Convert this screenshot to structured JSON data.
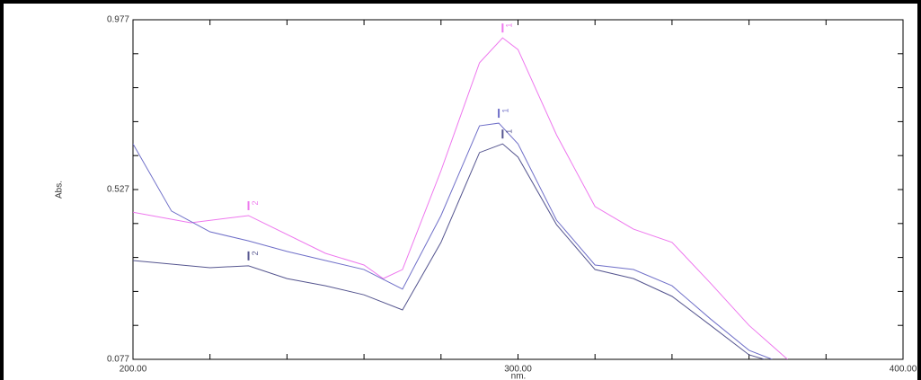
{
  "chart_data": {
    "type": "line",
    "x_label": "nm.",
    "y_label": "Abs.",
    "xlim": [
      200,
      400
    ],
    "ylim": [
      0.077,
      0.977
    ],
    "xticks": [
      {
        "value": 200,
        "label": "200.00"
      },
      {
        "value": 300,
        "label": "300.00"
      },
      {
        "value": 400,
        "label": "400.00"
      }
    ],
    "minor_xticks": [
      220,
      240,
      260,
      280,
      320,
      340,
      360,
      380
    ],
    "yticks": [
      0.077,
      0.527,
      0.977
    ],
    "minor_yticks": [
      0.167,
      0.257,
      0.347,
      0.437,
      0.617,
      0.707,
      0.797,
      0.887
    ],
    "series": [
      {
        "color": "#ee77ee",
        "x": [
          200,
          215,
          230,
          250,
          260,
          265,
          270,
          280,
          290,
          296,
          300,
          310,
          320,
          330,
          340,
          350,
          360,
          370
        ],
        "values": [
          0.467,
          0.439,
          0.458,
          0.358,
          0.327,
          0.291,
          0.315,
          0.577,
          0.863,
          0.929,
          0.898,
          0.672,
          0.482,
          0.422,
          0.387,
          0.279,
          0.167,
          0.077
        ]
      },
      {
        "color": "#6f6fc8",
        "x": [
          200,
          210,
          220,
          230,
          240,
          250,
          260,
          270,
          280,
          290,
          295,
          300,
          310,
          320,
          330,
          340,
          350,
          360,
          366
        ],
        "values": [
          0.648,
          0.47,
          0.415,
          0.391,
          0.363,
          0.339,
          0.315,
          0.263,
          0.458,
          0.696,
          0.703,
          0.648,
          0.446,
          0.327,
          0.315,
          0.272,
          0.184,
          0.101,
          0.077
        ]
      },
      {
        "color": "#55558f",
        "x": [
          200,
          220,
          230,
          240,
          250,
          260,
          270,
          280,
          290,
          296,
          300,
          310,
          320,
          330,
          340,
          350,
          360,
          364
        ],
        "values": [
          0.339,
          0.32,
          0.325,
          0.291,
          0.272,
          0.248,
          0.208,
          0.387,
          0.625,
          0.648,
          0.613,
          0.434,
          0.315,
          0.291,
          0.244,
          0.167,
          0.089,
          0.077
        ]
      }
    ],
    "annotations": [
      {
        "text": "1",
        "series": 0,
        "x": 296,
        "y": 0.929
      },
      {
        "text": "2",
        "series": 0,
        "x": 230,
        "y": 0.458
      },
      {
        "text": "1",
        "series": 1,
        "x": 295,
        "y": 0.703
      },
      {
        "text": "1",
        "series": 2,
        "x": 296,
        "y": 0.648
      },
      {
        "text": "2",
        "series": 2,
        "x": 230,
        "y": 0.325
      }
    ]
  }
}
